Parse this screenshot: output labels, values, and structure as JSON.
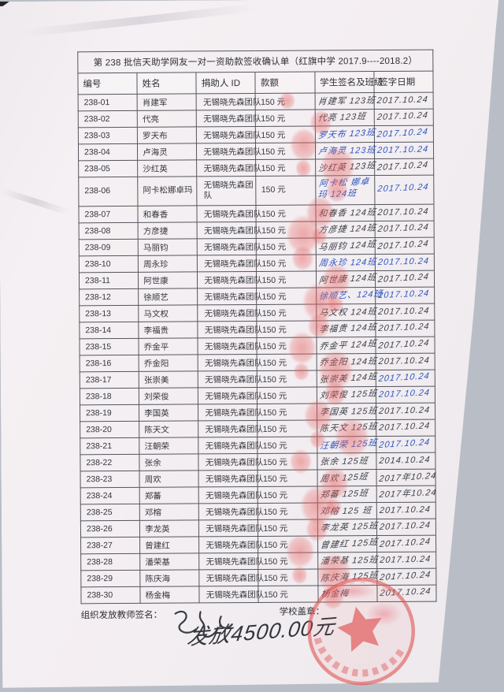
{
  "document": {
    "title": "第 238 批信天助学网友一对一资助款签收确认单（红旗中学 2017.9----2018.2）",
    "columns": [
      "编号",
      "姓名",
      "捐助人 ID",
      "款额",
      "学生签名及班级",
      "签字日期"
    ],
    "ink_colors": {
      "dark": "#3c4049",
      "blue": "#2d55c0",
      "red_stamp": "#e05050"
    },
    "rows": [
      {
        "id": "238-01",
        "name": "肖建军",
        "donor": "无锡晓先森团队",
        "amount": "150 元",
        "signature": "肖建军 123班",
        "date": "2017.10.24",
        "sig_ink": "dark",
        "date_ink": "dark"
      },
      {
        "id": "238-02",
        "name": "代亮",
        "donor": "无锡晓先森团队",
        "amount": "150 元",
        "signature": "代亮 123班",
        "date": "2017.10.24",
        "sig_ink": "dark",
        "date_ink": "dark"
      },
      {
        "id": "238-03",
        "name": "罗天布",
        "donor": "无锡晓先森团队",
        "amount": "150 元",
        "signature": "罗天布 123班",
        "date": "2017.10.24",
        "sig_ink": "blue",
        "date_ink": "blue"
      },
      {
        "id": "238-04",
        "name": "卢海灵",
        "donor": "无锡晓先森团队",
        "amount": "150 元",
        "signature": "卢海灵 123班",
        "date": "2017.10.24",
        "sig_ink": "blue",
        "date_ink": "blue"
      },
      {
        "id": "238-05",
        "name": "沙红英",
        "donor": "无锡晓先森团队",
        "amount": "150 元",
        "signature": "沙红英 123班",
        "date": "2017.10.24",
        "sig_ink": "dark",
        "date_ink": "dark"
      },
      {
        "id": "238-06",
        "name": "阿卡松娜卓玛",
        "donor": "无锡晓先森团队",
        "amount": "150 元",
        "signature": "阿卡松 娜卓玛 124班",
        "date": "2017.10.24",
        "sig_ink": "blue",
        "date_ink": "blue"
      },
      {
        "id": "238-07",
        "name": "和春香",
        "donor": "无锡晓先森团队",
        "amount": "150 元",
        "signature": "和春香 124班",
        "date": "2017.10.24",
        "sig_ink": "dark",
        "date_ink": "dark"
      },
      {
        "id": "238-08",
        "name": "方彦捷",
        "donor": "无锡晓先森团队",
        "amount": "150 元",
        "signature": "方彦捷 124班",
        "date": "2017.10.24",
        "sig_ink": "dark",
        "date_ink": "dark"
      },
      {
        "id": "238-09",
        "name": "马丽钧",
        "donor": "无锡晓先森团队",
        "amount": "150 元",
        "signature": "马丽钧 124班",
        "date": "2017.10.24",
        "sig_ink": "dark",
        "date_ink": "dark"
      },
      {
        "id": "238-10",
        "name": "周永珍",
        "donor": "无锡晓先森团队",
        "amount": "150 元",
        "signature": "周永珍 124班",
        "date": "2017.10.24",
        "sig_ink": "blue",
        "date_ink": "blue"
      },
      {
        "id": "238-11",
        "name": "阿世康",
        "donor": "无锡晓先森团队",
        "amount": "150 元",
        "signature": "阿世康 124班",
        "date": "2017.10.24",
        "sig_ink": "dark",
        "date_ink": "dark"
      },
      {
        "id": "238-12",
        "name": "徐顺艺",
        "donor": "无锡晓先森团队",
        "amount": "150 元",
        "signature": "徐顺艺、124班",
        "date": "2017.10.24",
        "sig_ink": "blue",
        "date_ink": "blue"
      },
      {
        "id": "238-13",
        "name": "马文权",
        "donor": "无锡晓先森团队",
        "amount": "150 元",
        "signature": "马文权 124班",
        "date": "2017.10.24",
        "sig_ink": "dark",
        "date_ink": "dark"
      },
      {
        "id": "238-14",
        "name": "李福贵",
        "donor": "无锡晓先森团队",
        "amount": "150 元",
        "signature": "李福贵 124班",
        "date": "2017.10.24",
        "sig_ink": "dark",
        "date_ink": "dark"
      },
      {
        "id": "238-15",
        "name": "乔金平",
        "donor": "无锡晓先森团队",
        "amount": "150 元",
        "signature": "乔金平 124班",
        "date": "2017.10.24",
        "sig_ink": "dark",
        "date_ink": "dark"
      },
      {
        "id": "238-16",
        "name": "乔金阳",
        "donor": "无锡晓先森团队",
        "amount": "150 元",
        "signature": "乔金阳 124班",
        "date": "2017.10.24",
        "sig_ink": "dark",
        "date_ink": "dark"
      },
      {
        "id": "238-17",
        "name": "张崇美",
        "donor": "无锡晓先森团队",
        "amount": "150 元",
        "signature": "张崇美 124班",
        "date": "2017.10.24",
        "sig_ink": "dark",
        "date_ink": "blue"
      },
      {
        "id": "238-18",
        "name": "刘荣俊",
        "donor": "无锡晓先森团队",
        "amount": "150 元",
        "signature": "刘荣俊 125班",
        "date": "2017.10.24",
        "sig_ink": "dark",
        "date_ink": "blue"
      },
      {
        "id": "238-19",
        "name": "李国英",
        "donor": "无锡晓先森团队",
        "amount": "150 元",
        "signature": "李国英 125班",
        "date": "2017.10.24",
        "sig_ink": "dark",
        "date_ink": "dark"
      },
      {
        "id": "238-20",
        "name": "陈天文",
        "donor": "无锡晓先森团队",
        "amount": "150 元",
        "signature": "陈天文 125班",
        "date": "2017.10.24",
        "sig_ink": "dark",
        "date_ink": "dark"
      },
      {
        "id": "238-21",
        "name": "汪朝荣",
        "donor": "无锡晓先森团队",
        "amount": "150 元",
        "signature": "汪朝荣 125班",
        "date": "2017.10.24",
        "sig_ink": "blue",
        "date_ink": "blue"
      },
      {
        "id": "238-22",
        "name": "张余",
        "donor": "无锡晓先森团队",
        "amount": "150 元",
        "signature": "张余 125班",
        "date": "2014.10.24",
        "sig_ink": "dark",
        "date_ink": "dark"
      },
      {
        "id": "238-23",
        "name": "周欢",
        "donor": "无锡晓先森团队",
        "amount": "150 元",
        "signature": "周欢 125班",
        "date": "2017年10.24",
        "sig_ink": "dark",
        "date_ink": "dark"
      },
      {
        "id": "238-24",
        "name": "郑蕃",
        "donor": "无锡晓先森团队",
        "amount": "150 元",
        "signature": "郑蕃 125班",
        "date": "2017年10.24",
        "sig_ink": "dark",
        "date_ink": "dark"
      },
      {
        "id": "238-25",
        "name": "邓榕",
        "donor": "无锡晓先森团队",
        "amount": "150 元",
        "signature": "邓榕 125 班",
        "date": "2017.10.24",
        "sig_ink": "dark",
        "date_ink": "dark"
      },
      {
        "id": "238-26",
        "name": "李龙英",
        "donor": "无锡晓先森团队",
        "amount": "150 元",
        "signature": "李龙英 125班",
        "date": "2017.10.24",
        "sig_ink": "dark",
        "date_ink": "dark"
      },
      {
        "id": "238-27",
        "name": "曾建红",
        "donor": "无锡晓先森团队",
        "amount": "150 元",
        "signature": "曾建红 125班",
        "date": "2017.10.24",
        "sig_ink": "dark",
        "date_ink": "dark"
      },
      {
        "id": "238-28",
        "name": "潘荣基",
        "donor": "无锡晓先森团队",
        "amount": "150 元",
        "signature": "潘荣基 125班",
        "date": "2017.10.24",
        "sig_ink": "dark",
        "date_ink": "dark"
      },
      {
        "id": "238-29",
        "name": "陈庆海",
        "donor": "无锡晓先森团队",
        "amount": "150 元",
        "signature": "陈庆海 125班",
        "date": "2017.10.24",
        "sig_ink": "dark",
        "date_ink": "dark"
      },
      {
        "id": "238-30",
        "name": "杨金梅",
        "donor": "无锡晓先森团队",
        "amount": "150 元",
        "signature": "杨金梅",
        "date": "2017.10.24",
        "sig_ink": "dark",
        "date_ink": "dark"
      }
    ],
    "footer": {
      "teacher_label": "组织发放教师签名：",
      "stamp_label": "学校盖章：",
      "amount_note": "发放4500.00元"
    }
  }
}
